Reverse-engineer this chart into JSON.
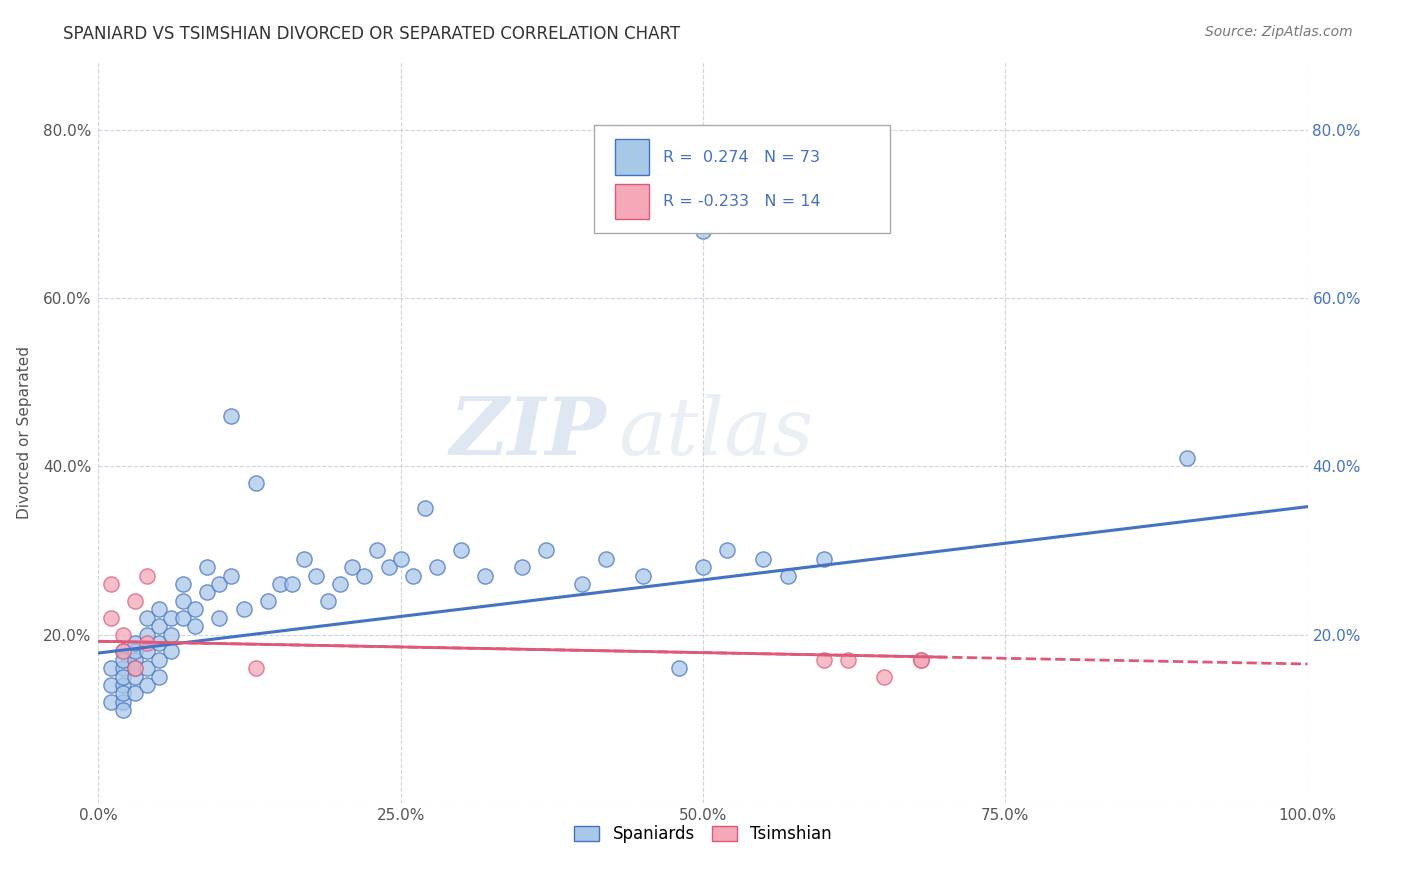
{
  "title": "SPANIARD VS TSIMSHIAN DIVORCED OR SEPARATED CORRELATION CHART",
  "source_text": "Source: ZipAtlas.com",
  "ylabel": "Divorced or Separated",
  "xlim": [
    0.0,
    1.0
  ],
  "ylim": [
    0.0,
    0.88
  ],
  "x_ticks": [
    0.0,
    0.25,
    0.5,
    0.75,
    1.0
  ],
  "x_tick_labels": [
    "0.0%",
    "25.0%",
    "50.0%",
    "75.0%",
    "100.0%"
  ],
  "y_ticks": [
    0.0,
    0.2,
    0.4,
    0.6,
    0.8
  ],
  "y_tick_labels": [
    "",
    "20.0%",
    "40.0%",
    "60.0%",
    "80.0%"
  ],
  "legend_labels": [
    "Spaniards",
    "Tsimshian"
  ],
  "r_spaniard": 0.274,
  "n_spaniard": 73,
  "r_tsimshian": -0.233,
  "n_tsimshian": 14,
  "color_spaniard": "#a8c8e8",
  "color_tsimshian": "#f4a8b8",
  "line_color_spaniard": "#4472c4",
  "line_color_tsimshian": "#e05878",
  "text_color_blue": "#4472c4",
  "text_color_dark": "#333333",
  "watermark_zip": "ZIP",
  "watermark_atlas": "atlas",
  "background_color": "#ffffff",
  "grid_color": "#c8d0dc",
  "spaniard_x": [
    0.01,
    0.01,
    0.01,
    0.02,
    0.02,
    0.02,
    0.02,
    0.02,
    0.02,
    0.02,
    0.02,
    0.03,
    0.03,
    0.03,
    0.03,
    0.03,
    0.03,
    0.04,
    0.04,
    0.04,
    0.04,
    0.04,
    0.05,
    0.05,
    0.05,
    0.05,
    0.05,
    0.06,
    0.06,
    0.06,
    0.07,
    0.07,
    0.07,
    0.08,
    0.08,
    0.09,
    0.09,
    0.1,
    0.1,
    0.11,
    0.11,
    0.12,
    0.13,
    0.14,
    0.15,
    0.16,
    0.17,
    0.18,
    0.19,
    0.2,
    0.21,
    0.22,
    0.23,
    0.24,
    0.25,
    0.26,
    0.28,
    0.3,
    0.32,
    0.35,
    0.37,
    0.4,
    0.42,
    0.45,
    0.48,
    0.5,
    0.52,
    0.55,
    0.57,
    0.6,
    0.9,
    0.5,
    0.27
  ],
  "spaniard_y": [
    0.16,
    0.14,
    0.12,
    0.18,
    0.16,
    0.14,
    0.12,
    0.15,
    0.17,
    0.13,
    0.11,
    0.17,
    0.15,
    0.13,
    0.18,
    0.16,
    0.19,
    0.2,
    0.18,
    0.16,
    0.22,
    0.14,
    0.19,
    0.21,
    0.17,
    0.15,
    0.23,
    0.22,
    0.2,
    0.18,
    0.24,
    0.22,
    0.26,
    0.23,
    0.21,
    0.25,
    0.28,
    0.22,
    0.26,
    0.27,
    0.46,
    0.23,
    0.38,
    0.24,
    0.26,
    0.26,
    0.29,
    0.27,
    0.24,
    0.26,
    0.28,
    0.27,
    0.3,
    0.28,
    0.29,
    0.27,
    0.28,
    0.3,
    0.27,
    0.28,
    0.3,
    0.26,
    0.29,
    0.27,
    0.16,
    0.28,
    0.3,
    0.29,
    0.27,
    0.29,
    0.41,
    0.68,
    0.35
  ],
  "tsimshian_x": [
    0.01,
    0.01,
    0.02,
    0.02,
    0.03,
    0.03,
    0.04,
    0.04,
    0.13,
    0.6,
    0.62,
    0.65,
    0.68,
    0.68
  ],
  "tsimshian_y": [
    0.26,
    0.22,
    0.2,
    0.18,
    0.24,
    0.16,
    0.19,
    0.27,
    0.16,
    0.17,
    0.17,
    0.15,
    0.17,
    0.17
  ],
  "line_spaniard_x0": 0.0,
  "line_spaniard_y0": 0.178,
  "line_spaniard_x1": 1.0,
  "line_spaniard_y1": 0.352,
  "line_tsimshian_x0": 0.0,
  "line_tsimshian_y0": 0.192,
  "line_tsimshian_x1": 1.0,
  "line_tsimshian_y1": 0.165
}
